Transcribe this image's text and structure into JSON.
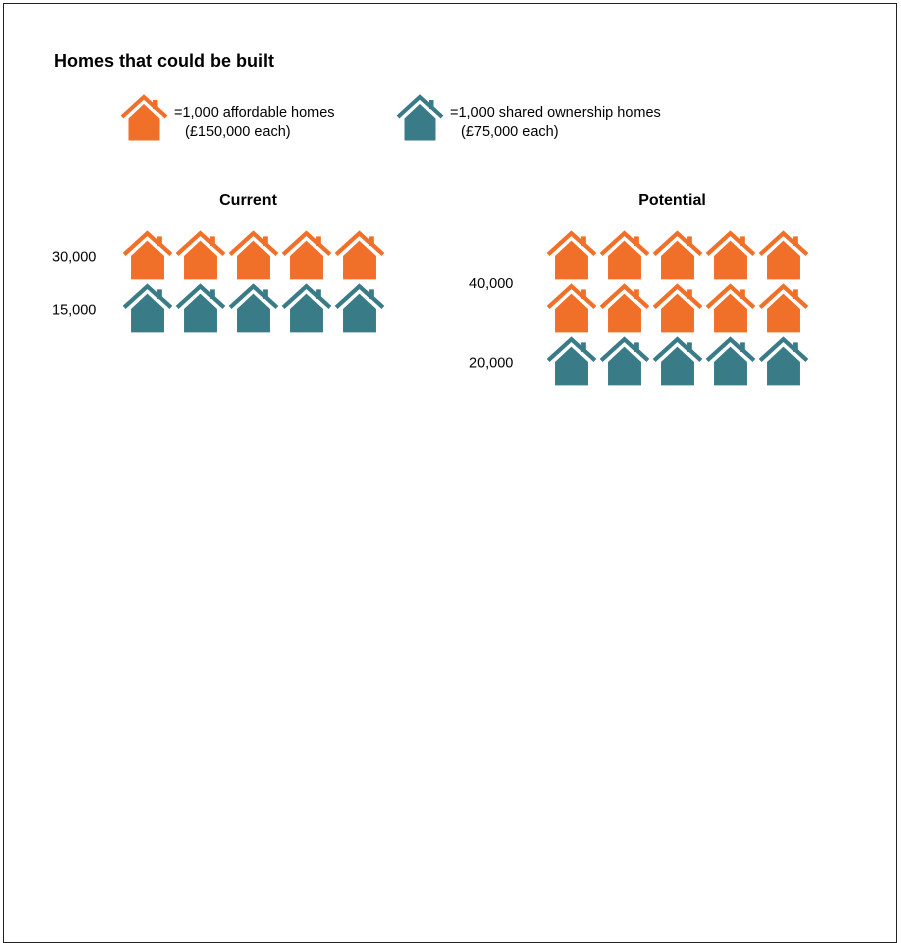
{
  "chart_data": {
    "type": "pictogram",
    "title": "Homes that could be built",
    "unit_value": 1000,
    "legend": [
      {
        "key": "affordable",
        "label": "=1,000 affordable homes",
        "sublabel": "(£150,000 each)",
        "color": "#f07029"
      },
      {
        "key": "shared",
        "label": "=1,000 shared ownership homes",
        "sublabel": "(£75,000 each)",
        "color": "#3a7b88"
      }
    ],
    "groups": [
      {
        "name": "Current",
        "segments": [
          {
            "key": "affordable",
            "value": 30000,
            "label": "30,000"
          },
          {
            "key": "shared",
            "value": 15000,
            "label": "15,000"
          }
        ]
      },
      {
        "name": "Potential",
        "segments": [
          {
            "key": "affordable",
            "value": 40000,
            "label": "40,000"
          },
          {
            "key": "shared",
            "value": 20000,
            "label": "20,000"
          }
        ]
      }
    ],
    "icons_per_row": 5,
    "icons_per_icon_value": 5000
  }
}
